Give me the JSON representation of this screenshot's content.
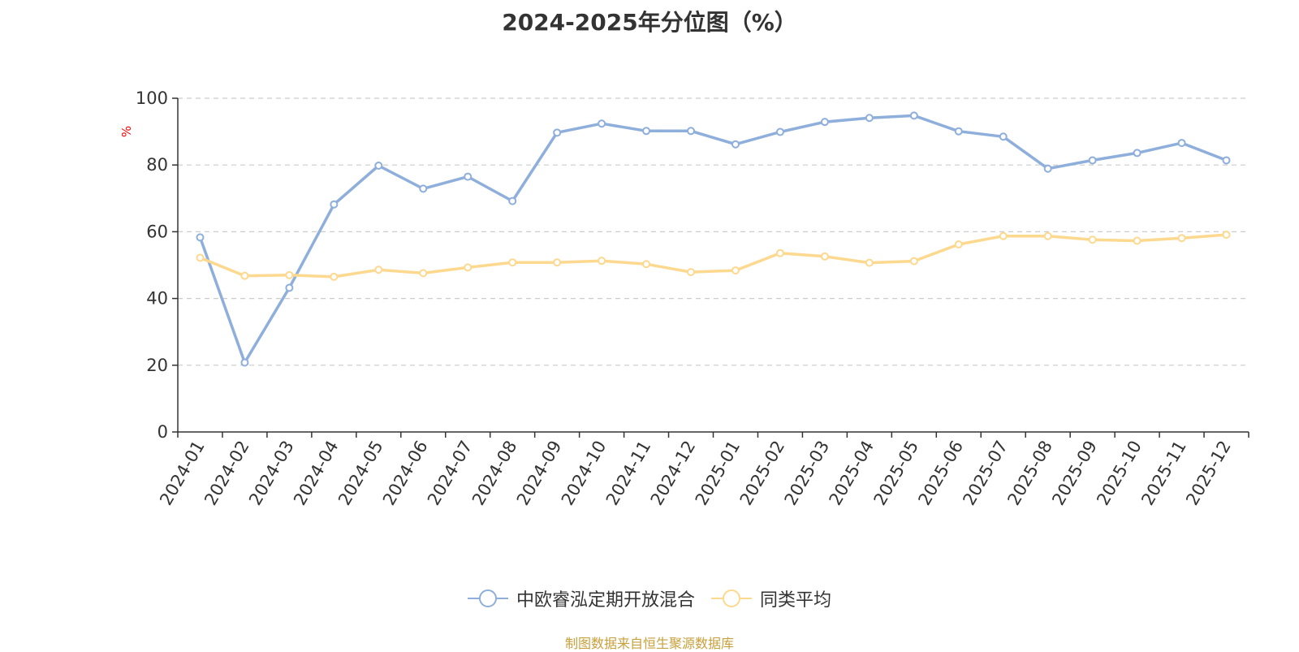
{
  "chart_data": {
    "type": "line",
    "title": "2024-2025年分位图（%）",
    "ylabel": "%",
    "ylim": [
      0,
      100
    ],
    "yticks": [
      0,
      20,
      40,
      60,
      80,
      100
    ],
    "grid": true,
    "legend_position": "bottom",
    "categories": [
      "2024-01",
      "2024-02",
      "2024-03",
      "2024-04",
      "2024-05",
      "2024-06",
      "2024-07",
      "2024-08",
      "2024-09",
      "2024-10",
      "2024-11",
      "2024-12",
      "2025-01",
      "2025-02",
      "2025-03",
      "2025-04",
      "2025-05",
      "2025-06",
      "2025-07",
      "2025-08",
      "2025-09",
      "2025-10",
      "2025-11",
      "2025-12"
    ],
    "series": [
      {
        "name": "中欧睿泓定期开放混合",
        "color": "#8eaedb",
        "values": [
          58.3,
          20.8,
          43.2,
          68.2,
          79.8,
          72.9,
          76.5,
          69.2,
          89.7,
          92.4,
          90.2,
          90.2,
          86.2,
          89.9,
          92.9,
          94.1,
          94.8,
          90.1,
          88.5,
          78.9,
          81.4,
          83.6,
          86.6,
          81.4
        ]
      },
      {
        "name": "同类平均",
        "color": "#fdd88f",
        "values": [
          52.2,
          46.8,
          47.0,
          46.5,
          48.6,
          47.6,
          49.3,
          50.8,
          50.8,
          51.3,
          50.3,
          47.9,
          48.4,
          53.6,
          52.6,
          50.7,
          51.2,
          56.2,
          58.7,
          58.7,
          57.6,
          57.3,
          58.1,
          59.1
        ]
      }
    ]
  },
  "source_note": "制图数据来自恒生聚源数据库",
  "colors": {
    "axis": "#333333",
    "grid": "#cccccc",
    "ylabel": "#ff0000",
    "source_note": "#c8a03c"
  }
}
